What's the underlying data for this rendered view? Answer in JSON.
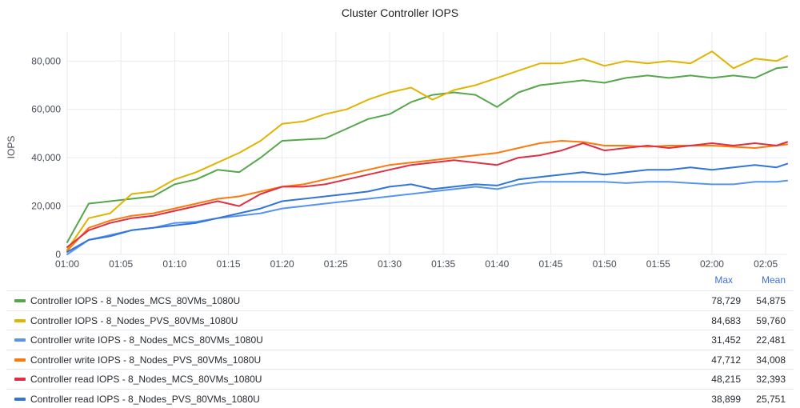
{
  "chart_data": {
    "type": "line",
    "title": "Cluster Controller IOPS",
    "ylabel": "IOPS",
    "xlabel": "",
    "ylim": [
      0,
      92000
    ],
    "xlim": [
      "01:00",
      "02:07"
    ],
    "yticks": [
      "0",
      "20,000",
      "40,000",
      "60,000",
      "80,000"
    ],
    "xticks": [
      "01:00",
      "01:05",
      "01:10",
      "01:15",
      "01:20",
      "01:25",
      "01:30",
      "01:35",
      "01:40",
      "01:45",
      "01:50",
      "01:55",
      "02:00",
      "02:05"
    ],
    "grid": true,
    "legend_placement": "bottom",
    "legend_stats": [
      "Max",
      "Mean"
    ],
    "x": [
      "01:00",
      "01:02",
      "01:04",
      "01:06",
      "01:08",
      "01:10",
      "01:12",
      "01:14",
      "01:16",
      "01:18",
      "01:20",
      "01:22",
      "01:24",
      "01:26",
      "01:28",
      "01:30",
      "01:32",
      "01:34",
      "01:36",
      "01:38",
      "01:40",
      "01:42",
      "01:44",
      "01:46",
      "01:48",
      "01:50",
      "01:52",
      "01:54",
      "01:56",
      "01:58",
      "02:00",
      "02:02",
      "02:04",
      "02:06",
      "02:07"
    ],
    "series": [
      {
        "name": "Controller IOPS - 8_Nodes_MCS_80VMs_1080U",
        "color": "#56a64b",
        "max": "78,729",
        "mean": "54,875",
        "values": [
          5000,
          21000,
          22000,
          23000,
          24000,
          29000,
          31000,
          35000,
          34000,
          40000,
          47000,
          47500,
          48000,
          52000,
          56000,
          58000,
          63000,
          66000,
          67000,
          66000,
          61000,
          67000,
          70000,
          71000,
          72000,
          71000,
          73000,
          74000,
          73000,
          74000,
          73000,
          74000,
          73000,
          77000,
          77500
        ]
      },
      {
        "name": "Controller IOPS - 8_Nodes_PVS_80VMs_1080U",
        "color": "#e0b400",
        "max": "84,683",
        "mean": "59,760",
        "values": [
          2000,
          15000,
          17000,
          25000,
          26000,
          31000,
          34000,
          38000,
          42000,
          47000,
          54000,
          55000,
          58000,
          60000,
          64000,
          67000,
          69000,
          64000,
          68000,
          70000,
          73000,
          76000,
          79000,
          79000,
          81000,
          78000,
          80000,
          79000,
          80000,
          79000,
          84000,
          77000,
          81000,
          80000,
          82000
        ]
      },
      {
        "name": "Controller write IOPS - 8_Nodes_MCS_80VMs_1080U",
        "color": "#5794f2",
        "max": "31,452",
        "mean": "22,481",
        "values": [
          0,
          6000,
          8000,
          10000,
          11000,
          13000,
          13500,
          15000,
          16000,
          17000,
          19000,
          20000,
          21000,
          22000,
          23000,
          24000,
          25000,
          26000,
          27000,
          28000,
          27000,
          29000,
          30000,
          30000,
          30000,
          30000,
          29500,
          30000,
          30000,
          29500,
          29000,
          29000,
          30000,
          30000,
          30500
        ]
      },
      {
        "name": "Controller write IOPS - 8_Nodes_PVS_80VMs_1080U",
        "color": "#ff780a",
        "max": "47,712",
        "mean": "34,008",
        "values": [
          1500,
          11000,
          14000,
          16000,
          17000,
          19000,
          21000,
          23000,
          24000,
          26000,
          28000,
          29000,
          31000,
          33000,
          35000,
          37000,
          38000,
          39000,
          40000,
          41000,
          42000,
          44000,
          46000,
          47000,
          46500,
          45000,
          45000,
          44500,
          45000,
          45000,
          45000,
          44500,
          44000,
          45000,
          45500
        ]
      },
      {
        "name": "Controller read IOPS - 8_Nodes_MCS_80VMs_1080U",
        "color": "#e02f44",
        "max": "48,215",
        "mean": "32,393",
        "values": [
          3000,
          10000,
          13000,
          15000,
          16000,
          18000,
          20000,
          22000,
          20000,
          25000,
          28000,
          28000,
          29000,
          31000,
          33000,
          35000,
          37000,
          38000,
          39000,
          38000,
          37000,
          40000,
          41000,
          43000,
          46000,
          43000,
          44000,
          45000,
          44000,
          45000,
          46000,
          45000,
          46000,
          45000,
          46500
        ]
      },
      {
        "name": "Controller read IOPS - 8_Nodes_PVS_80VMs_1080U",
        "color": "#3274d9",
        "max": "38,899",
        "mean": "25,751",
        "values": [
          1000,
          6000,
          7500,
          10000,
          11000,
          12000,
          13000,
          15000,
          17000,
          19000,
          22000,
          23000,
          24000,
          25000,
          26000,
          28000,
          29000,
          27000,
          28000,
          29000,
          28500,
          31000,
          32000,
          33000,
          34000,
          33000,
          34000,
          35000,
          35000,
          36000,
          35000,
          36000,
          37000,
          36000,
          37500
        ]
      }
    ]
  }
}
